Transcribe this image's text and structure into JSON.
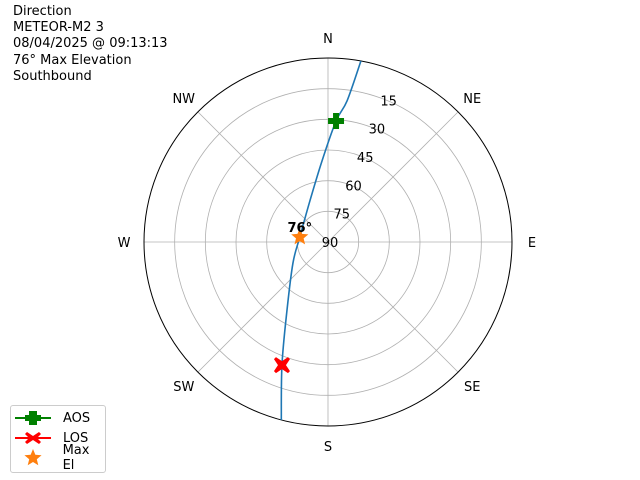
{
  "title_lines": [
    "Direction",
    "METEOR-M2 3",
    "08/04/2025 @ 09:13:13",
    "76° Max Elevation",
    "Southbound"
  ],
  "chart_data": {
    "type": "line",
    "projection": "polar",
    "theta_direction": "clockwise",
    "theta_zero": "N",
    "r_axis": "elevation (90 at center, 0 at edge)",
    "r_ticks": [
      15,
      30,
      45,
      60,
      75,
      90
    ],
    "theta_tick_labels": [
      "N",
      "NE",
      "E",
      "SE",
      "S",
      "SW",
      "W",
      "NW"
    ],
    "grid": true,
    "legend_placement": "lower-left",
    "track": {
      "color": "#1f77b4",
      "azimuth_deg": [
        10.3,
        7.7,
        3.8,
        355.8,
        336.3,
        279.8,
        239,
        210.7,
        200.5,
        194.7
      ],
      "elevation_deg": [
        0,
        20.3,
        30.7,
        50.2,
        68,
        76,
        70,
        50.6,
        25.7,
        0
      ]
    },
    "markers": [
      {
        "name": "AOS",
        "azimuth_deg": 3.8,
        "elevation_deg": 30.7,
        "color": "#008000",
        "symbol": "plus"
      },
      {
        "name": "LOS",
        "azimuth_deg": 200.5,
        "elevation_deg": 25.7,
        "color": "#ff0000",
        "symbol": "x"
      },
      {
        "name": "Max El",
        "azimuth_deg": 279.8,
        "elevation_deg": 76,
        "color": "#ff7f0e",
        "symbol": "star"
      }
    ],
    "annotation": "76°"
  }
}
